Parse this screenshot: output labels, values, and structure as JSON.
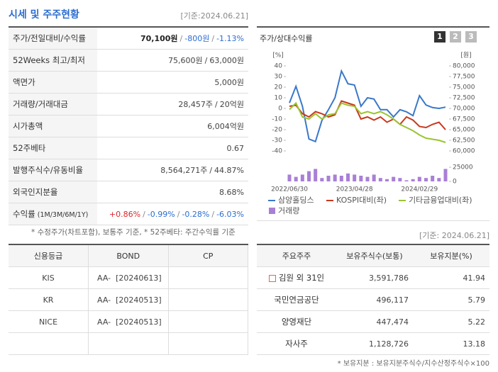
{
  "header": {
    "title": "시세 및 주주현황",
    "date": "[기준:2024.06.21]"
  },
  "price_table": {
    "rows": [
      {
        "label": "주가/전일대비/수익률",
        "parts": [
          "70,100원",
          "/",
          "-800원",
          "/",
          "-1.13%"
        ],
        "colors": [
          "#222",
          "#888",
          "#2b6dd1",
          "#888",
          "#2b6dd1"
        ]
      },
      {
        "label": "52Weeks 최고/최저",
        "parts": [
          "75,600원",
          "/",
          "63,000원"
        ],
        "colors": [
          "#444",
          "#444",
          "#444"
        ]
      },
      {
        "label": "액면가",
        "parts": [
          "5,000원"
        ],
        "colors": [
          "#444"
        ]
      },
      {
        "label": "거래량/거래대금",
        "parts": [
          "28,457주",
          "/",
          "20억원"
        ],
        "colors": [
          "#444",
          "#444",
          "#444"
        ]
      },
      {
        "label": "시가총액",
        "parts": [
          "6,004억원"
        ],
        "colors": [
          "#444"
        ]
      },
      {
        "label": "52주베타",
        "parts": [
          "0.67"
        ],
        "colors": [
          "#444"
        ]
      },
      {
        "label": "발행주식수/유동비율",
        "parts": [
          "8,564,271주",
          "/",
          "44.87%"
        ],
        "colors": [
          "#444",
          "#444",
          "#444"
        ]
      },
      {
        "label": "외국인지분율",
        "parts": [
          "8.68%"
        ],
        "colors": [
          "#444"
        ]
      },
      {
        "label": "수익률",
        "label_note": "(1M/3M/6M/1Y)",
        "parts": [
          "+0.86%",
          "/",
          "-0.99%",
          "/",
          "-0.28%",
          "/",
          "-6.03%"
        ],
        "colors": [
          "#d8282e",
          "#888",
          "#2b6dd1",
          "#888",
          "#2b6dd1",
          "#888",
          "#2b6dd1"
        ]
      }
    ],
    "footnote": "* 수정주가(차트포함), 보통주 기준, * 52주베타: 주간수익률 기준"
  },
  "chart_panel": {
    "title": "주가/상대수익률",
    "tabs": [
      "1",
      "2",
      "3"
    ]
  },
  "chart_data": [
    {
      "type": "line",
      "ylabel": "[%]",
      "y2label": "[원]",
      "categories": [
        "2022/06/30",
        null,
        null,
        null,
        null,
        null,
        null,
        null,
        null,
        null,
        "2023/04/28",
        null,
        null,
        null,
        null,
        null,
        null,
        null,
        null,
        null,
        "2024/02/29",
        null,
        null,
        null,
        null
      ],
      "ylim": [
        -40,
        40
      ],
      "yticks": [
        40,
        30,
        20,
        10,
        0,
        -10,
        -20,
        -30,
        -40
      ],
      "y2lim": [
        60000,
        80000
      ],
      "y2ticks": [
        {
          "value": 80000,
          "label": "80,000"
        },
        {
          "value": 77500,
          "label": "77,500"
        },
        {
          "value": 75000,
          "label": "75,000"
        },
        {
          "value": 72500,
          "label": "72,500"
        },
        {
          "value": 70000,
          "label": "70,000"
        },
        {
          "value": 67500,
          "label": "67,500"
        },
        {
          "value": 65000,
          "label": "65,000"
        },
        {
          "value": 62500,
          "label": "62,500"
        },
        {
          "value": 60000,
          "label": "60,000"
        }
      ],
      "series": [
        {
          "name": "삼양홀딩스",
          "color": "#3a78c9",
          "axis": "y2",
          "values": [
            71300,
            75200,
            70500,
            62800,
            62200,
            67200,
            69700,
            72500,
            78800,
            75800,
            75500,
            70500,
            72500,
            72200,
            69700,
            69700,
            68000,
            69700,
            69200,
            68300,
            73000,
            70800,
            70200,
            70000,
            70300
          ]
        },
        {
          "name": "KOSPI대비(좌)",
          "color": "#c8381d",
          "values": [
            2,
            3,
            -5,
            -8,
            -3,
            -5,
            -8,
            -6,
            7,
            5,
            3,
            -10,
            -8,
            -11,
            -8,
            -13,
            -10,
            -15,
            -8,
            -11,
            -17,
            -18,
            -15,
            -13,
            -20
          ]
        },
        {
          "name": "기타금융업대비(좌)",
          "color": "#9ac431",
          "values": [
            -1,
            5,
            -8,
            -10,
            -5,
            -10,
            -6,
            -5,
            5,
            3,
            2,
            -5,
            -3,
            -5,
            -3,
            -6,
            -10,
            -15,
            -18,
            -21,
            -25,
            -28,
            -29,
            -30,
            -32
          ]
        }
      ]
    },
    {
      "type": "bar",
      "ylim": [
        0,
        25000
      ],
      "yticks": [
        25000,
        0
      ],
      "series": [
        {
          "name": "거래량",
          "color": "#a97fd6",
          "values": [
            12000,
            8000,
            12000,
            18000,
            22000,
            6000,
            10000,
            12000,
            10000,
            14000,
            12000,
            10000,
            8000,
            12000,
            6000,
            4000,
            8000,
            6000,
            2000,
            4000,
            8000,
            6000,
            10000,
            6000,
            22000
          ]
        }
      ]
    }
  ],
  "credit_table": {
    "headers": [
      "신용등급",
      "BOND",
      "CP"
    ],
    "rows": [
      [
        "KIS",
        "AA-  [20240613]"
      ],
      [
        "KR",
        "AA-  [20240513]"
      ],
      [
        "NICE",
        "AA-  [20240513]"
      ],
      []
    ]
  },
  "holder_table": {
    "date": "[기준: 2024.06.21]",
    "headers": [
      "주요주주",
      "보유주식수(보통)",
      "보유지분(%)"
    ],
    "rows": [
      [
        "김원 외 31인",
        "3,591,786",
        "41.94"
      ],
      [
        "국민연금공단",
        "496,117",
        "5.79"
      ],
      [
        "양영재단",
        "447,474",
        "5.22"
      ],
      [
        "자사주",
        "1,128,726",
        "13.18"
      ]
    ],
    "footnote": "* 보유지분 : 보유지분주식수/지수산정주식수×100"
  }
}
